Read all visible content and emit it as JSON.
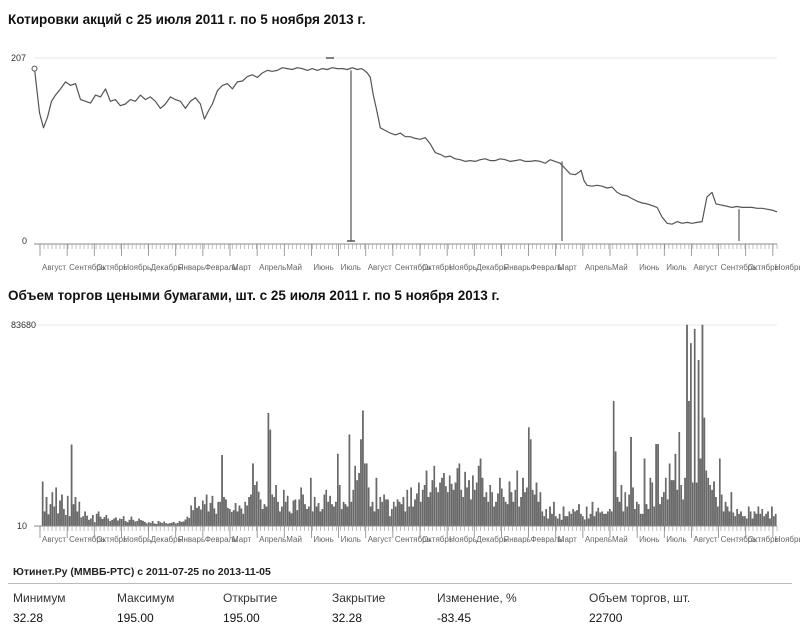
{
  "price_chart": {
    "title": "Котировки акций с 25 июля 2011 г. по 5 ноября 2013 г."
  },
  "volume_chart": {
    "title": "Объем торгов цеными бумагами, шт. с 25 июля 2011 г. по 5 ноября 2013 г."
  },
  "chart_data": [
    {
      "type": "line",
      "title": "Котировки акций с 25 июля 2011 г. по 5 ноября 2013 г.",
      "xlabel": "",
      "ylabel": "",
      "ylim": [
        0,
        207
      ],
      "y_ticks": [
        "207",
        "0"
      ],
      "x_labels": [
        "Август",
        "Сентябрь",
        "Октябрь",
        "Ноябрь",
        "Декабрь",
        "Январь",
        "Февраль",
        "Март",
        "Апрель",
        "Май",
        "Июнь",
        "Июль",
        "Август",
        "Сентябрь",
        "Октябрь",
        "Ноябрь",
        "Декабрь",
        "Январь",
        "Февраль",
        "Март",
        "Апрель",
        "Май",
        "Июнь",
        "Июль",
        "Август",
        "Сентябрь",
        "Октябрь",
        "Ноябрь"
      ],
      "series": [
        {
          "name": "Цена",
          "x": [
            0,
            2,
            5,
            9,
            13,
            17,
            21,
            26,
            31,
            36,
            41,
            46,
            51,
            56,
            61,
            66,
            71,
            76,
            81,
            86,
            91,
            96,
            101,
            106,
            111,
            116,
            121,
            126,
            131,
            136,
            141,
            146,
            151,
            156,
            161,
            166,
            170,
            174,
            178,
            183,
            188,
            193,
            198,
            203,
            208,
            213,
            218,
            223,
            228,
            233,
            238,
            243,
            248,
            253,
            258,
            263,
            268,
            273,
            278,
            283,
            288,
            293,
            298,
            303,
            308,
            313,
            318,
            323,
            327,
            330,
            333,
            336,
            339,
            342,
            346,
            351,
            356,
            361,
            366,
            371,
            376,
            381,
            386,
            391,
            396,
            401,
            406,
            411,
            416,
            421,
            426,
            431,
            436,
            441,
            446,
            451,
            456,
            461,
            466,
            471,
            476,
            481,
            486,
            491,
            496,
            501,
            506,
            511,
            516,
            521,
            526,
            531,
            536,
            541,
            544,
            547,
            550,
            553,
            558,
            563,
            568,
            573,
            578,
            583,
            588,
            593,
            598,
            603,
            608,
            613,
            618,
            623,
            628,
            633,
            638,
            643,
            648,
            653,
            658,
            663,
            668,
            673,
            678,
            682,
            686,
            690,
            694,
            698,
            703,
            708,
            713,
            718,
            723,
            728,
            733,
            738,
            743
          ],
          "values": [
            195,
            175,
            145,
            128,
            140,
            158,
            165,
            172,
            180,
            176,
            178,
            160,
            158,
            156,
            165,
            163,
            172,
            158,
            160,
            153,
            155,
            160,
            158,
            165,
            160,
            163,
            158,
            150,
            155,
            163,
            160,
            158,
            150,
            158,
            162,
            155,
            138,
            147,
            155,
            170,
            176,
            178,
            172,
            180,
            181,
            186,
            188,
            185,
            190,
            193,
            192,
            193,
            196,
            195,
            194,
            196,
            195,
            193,
            195,
            193,
            195,
            194,
            196,
            195,
            195,
            194,
            196,
            194,
            195,
            193,
            190,
            185,
            165,
            150,
            128,
            125,
            122,
            120,
            122,
            118,
            118,
            116,
            115,
            117,
            110,
            100,
            98,
            95,
            96,
            93,
            92,
            90,
            91,
            90,
            92,
            93,
            91,
            91,
            93,
            92,
            90,
            91,
            92,
            90,
            90,
            91,
            90,
            88,
            92,
            90,
            88,
            82,
            76,
            75,
            77,
            80,
            68,
            63,
            62,
            63,
            62,
            60,
            61,
            55,
            52,
            51,
            48,
            45,
            43,
            42,
            40,
            38,
            27,
            20,
            19,
            22,
            20,
            21,
            20,
            21,
            22,
            50,
            55,
            42,
            41,
            40,
            39,
            38,
            39,
            38,
            38,
            38,
            37,
            37,
            36,
            35,
            33
          ]
        }
      ]
    },
    {
      "type": "bar",
      "title": "Объем торгов цеными бумагами, шт. с 25 июля 2011 г. по 5 ноября 2013 г.",
      "xlabel": "",
      "ylabel": "",
      "ylim": [
        10,
        83680
      ],
      "y_ticks": [
        "83680",
        "10"
      ],
      "x_labels": [
        "Август",
        "Сентябрь",
        "Октябрь",
        "Ноябрь",
        "Декабрь",
        "Январь",
        "Февраль",
        "Март",
        "Апрель",
        "Май",
        "Июнь",
        "Июль",
        "Август",
        "Сентябрь",
        "Октябрь",
        "Ноябрь",
        "Декабрь",
        "Январь",
        "Февраль",
        "Март",
        "Апрель",
        "Май",
        "Июнь",
        "Июль",
        "Август",
        "Сентябрь",
        "Октябрь",
        "Ноябрь"
      ],
      "values": [
        18500,
        6000,
        12000,
        4800,
        9000,
        14000,
        8000,
        16000,
        5200,
        10500,
        13000,
        7000,
        4500,
        12500,
        4000,
        33800,
        9000,
        12000,
        6000,
        10000,
        3500,
        4000,
        6000,
        4200,
        2500,
        3000,
        4500,
        1500,
        5000,
        6000,
        3800,
        2800,
        3600,
        4500,
        3000,
        2000,
        2500,
        3000,
        3500,
        2200,
        3000,
        2800,
        4000,
        2000,
        1500,
        2500,
        3800,
        2500,
        1800,
        2000,
        3000,
        2400,
        2100,
        1600,
        1000,
        1500,
        1200,
        2000,
        1000,
        800,
        2000,
        1500,
        1200,
        1800,
        1100,
        900,
        1100,
        1300,
        1600,
        1000,
        1200,
        2000,
        1600,
        1800,
        2600,
        3800,
        3200,
        8500,
        6500,
        12000,
        7500,
        8200,
        6800,
        10500,
        9000,
        13000,
        6000,
        9500,
        12500,
        7200,
        5000,
        10000,
        10000,
        29500,
        12000,
        11000,
        7500,
        7000,
        5800,
        6500,
        9500,
        6000,
        8500,
        7200,
        5000,
        10000,
        8500,
        12000,
        13000,
        26000,
        17000,
        18500,
        14200,
        11000,
        7000,
        9000,
        8000,
        47000,
        40000,
        13000,
        12000,
        17000,
        10000,
        6000,
        8000,
        15000,
        10000,
        12500,
        6000,
        5200,
        10500,
        11000,
        6500,
        11000,
        16000,
        13000,
        9000,
        7000,
        8000,
        20000,
        6000,
        12000,
        8000,
        9500,
        6000,
        7000,
        13000,
        15000,
        10000,
        12500,
        9000,
        8000,
        10000,
        30000,
        17000,
        7000,
        10000,
        9000,
        8000,
        38000,
        10000,
        15000,
        25000,
        19000,
        22000,
        36000,
        48000,
        26000,
        26000,
        16000,
        8000,
        10000,
        6000,
        20000,
        7000,
        12000,
        10000,
        13000,
        11000,
        11000,
        4000,
        7000,
        10000,
        8000,
        11000,
        10000,
        9000,
        12000,
        6000,
        15000,
        8000,
        16000,
        8000,
        11000,
        13500,
        18000,
        10000,
        15000,
        17000,
        23000,
        12000,
        14000,
        19000,
        25000,
        16000,
        14000,
        18000,
        20000,
        22000,
        16500,
        14000,
        21000,
        17500,
        15000,
        18000,
        24000,
        26000,
        15000,
        12000,
        22500,
        16000,
        19000,
        11000,
        21000,
        15000,
        18000,
        25000,
        28000,
        20000,
        12000,
        14000,
        10000,
        17000,
        14000,
        8000,
        10000,
        13500,
        20000,
        15500,
        12000,
        10000,
        9000,
        18500,
        14000,
        10000,
        15000,
        23000,
        8000,
        12000,
        20000,
        14000,
        16000,
        41000,
        36000,
        15000,
        13000,
        18000,
        10000,
        14000,
        6000,
        4000,
        7000,
        3000,
        8000,
        5000,
        10000,
        4000,
        3000,
        5000,
        2500,
        8000,
        4000,
        4000,
        6000,
        5000,
        7000,
        6000,
        6500,
        9000,
        5000,
        4000,
        2600,
        8000,
        3000,
        5000,
        10000,
        4000,
        6000,
        7500,
        5500,
        6000,
        5000,
        5000,
        6000,
        7000,
        6000,
        52000,
        31000,
        12000,
        10000,
        17000,
        6000,
        14000,
        8000,
        13000,
        37000,
        16000,
        7000,
        10000,
        9000,
        5000,
        5000,
        28000,
        9000,
        7000,
        20000,
        18000,
        8000,
        34000,
        34000,
        9000,
        12000,
        14000,
        20000,
        11000,
        26000,
        19000,
        19000,
        30000,
        15000,
        39000,
        17000,
        11000,
        20000,
        83680,
        52000,
        76000,
        18000,
        82000,
        18000,
        69000,
        28000,
        83680,
        45000,
        23000,
        20000,
        17000,
        15000,
        18500,
        12000,
        8000,
        28000,
        13000,
        6000,
        10000,
        8000,
        6000,
        14000,
        5500,
        4000,
        7000,
        5000,
        6000,
        4000,
        4000,
        3000,
        8000,
        6000,
        3000,
        6000,
        5000,
        8000,
        5000,
        7000,
        4000,
        5000,
        6000,
        3000,
        8000,
        4000,
        5000
      ]
    }
  ],
  "source_line": "Ютинет.Ру (ММВБ-РТС) с 2011-07-25 по 2013-11-05",
  "stats": [
    {
      "label": "Минимум",
      "value": "32.28"
    },
    {
      "label": "Максимум",
      "value": "195.00"
    },
    {
      "label": "Открытие",
      "value": "195.00"
    },
    {
      "label": "Закрытие",
      "value": "32.28"
    },
    {
      "label": "Изменение, %",
      "value": "-83.45"
    },
    {
      "label": "Объем торгов, шт.",
      "value": "22700"
    }
  ]
}
